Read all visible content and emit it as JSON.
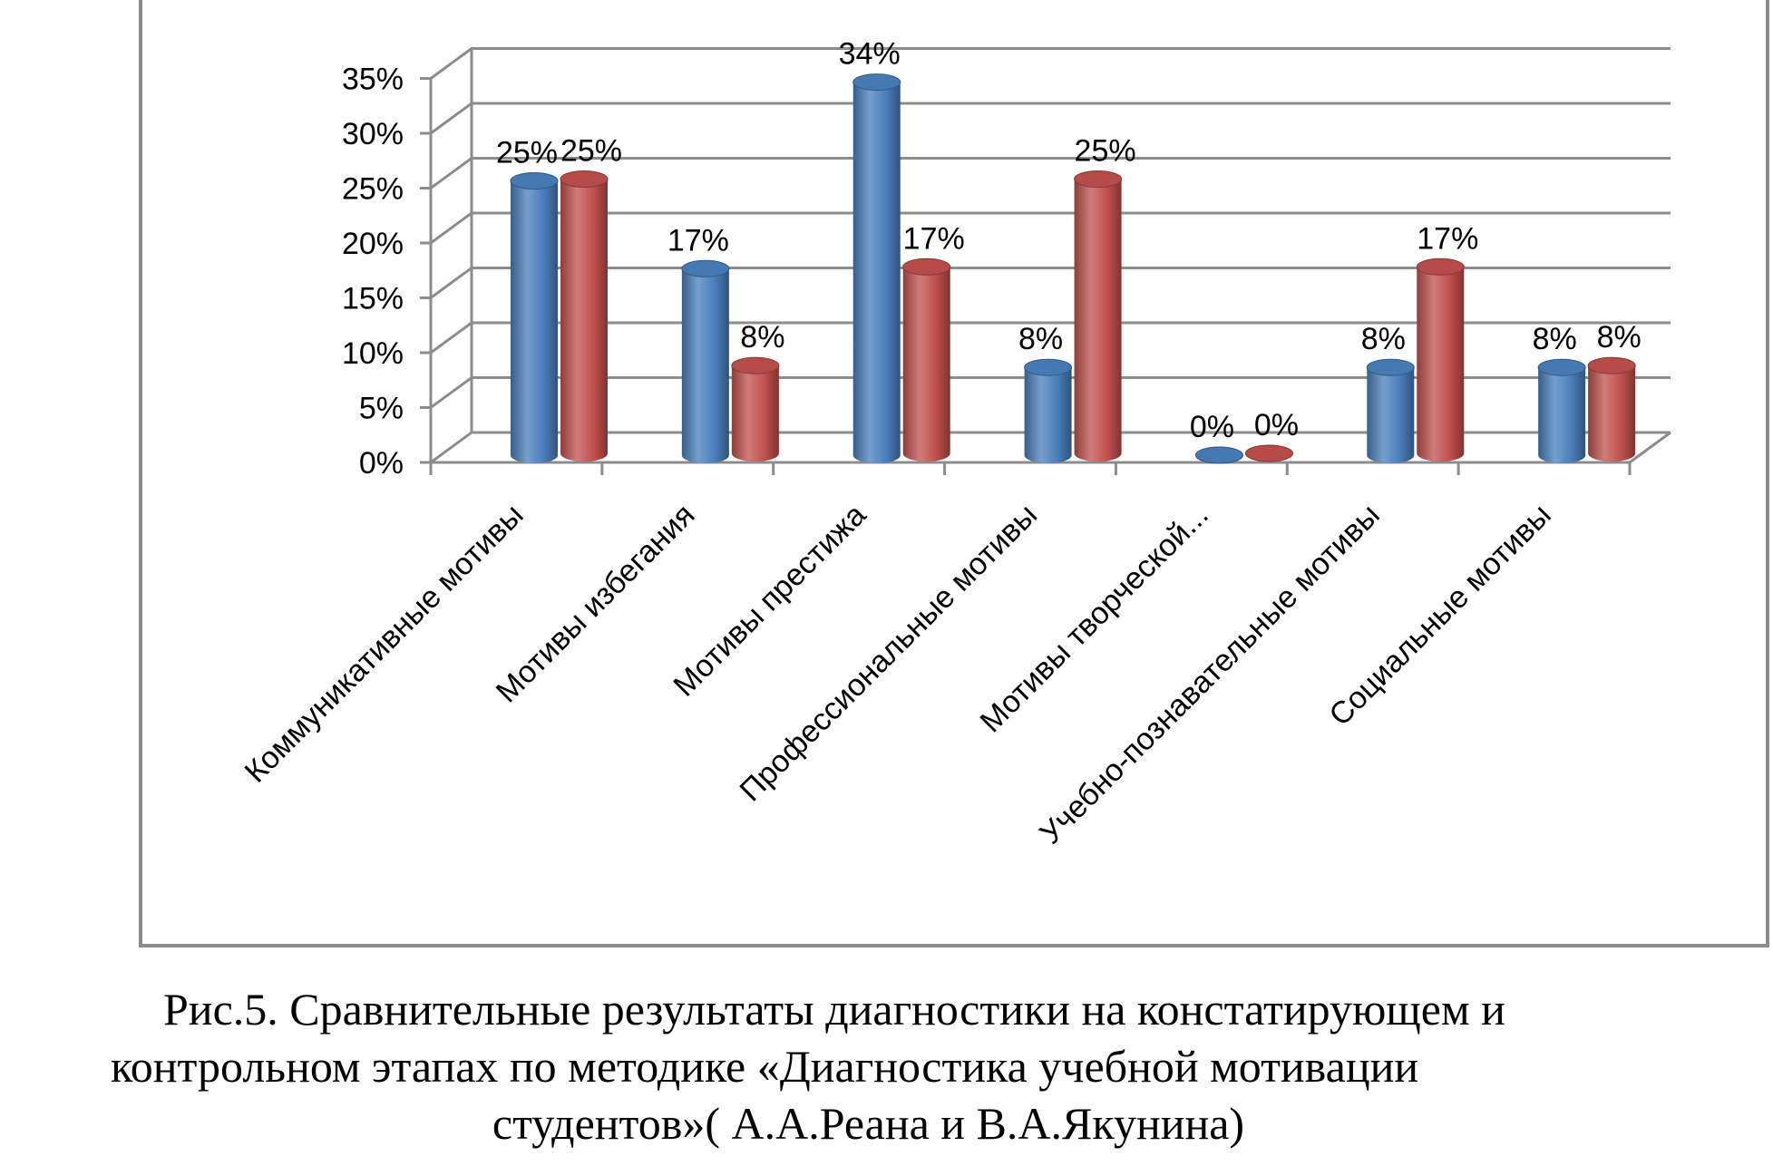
{
  "chart_data": {
    "type": "bar",
    "style": "3d-cylinder",
    "categories": [
      "Коммуникативные мотивы",
      "Мотивы избегания",
      "Мотивы престижа",
      "Профессиональные мотивы",
      "Мотивы творческой...",
      "Учебно-познавательные мотивы",
      "Социальные мотивы"
    ],
    "series": [
      {
        "values": [
          25,
          17,
          34,
          8,
          0,
          8,
          8
        ],
        "color": "#4a7ebb"
      },
      {
        "values": [
          25,
          8,
          17,
          25,
          0,
          17,
          8
        ],
        "color": "#c0504d"
      }
    ],
    "data_labels": [
      [
        "25%",
        "17%",
        "34%",
        "8%",
        "0%",
        "8%",
        "8%"
      ],
      [
        "25%",
        "8%",
        "17%",
        "25%",
        "0%",
        "17%",
        "8%"
      ]
    ],
    "y_ticks": [
      "0%",
      "5%",
      "10%",
      "15%",
      "20%",
      "25%",
      "30%",
      "35%"
    ],
    "ylim": [
      0,
      35
    ],
    "grid": true,
    "legend": "none"
  },
  "caption": {
    "line1": "Рис.5. Сравнительные результаты диагностики на констатирующем и",
    "line2": "контрольном этапах  по методике «Диагностика учебной мотивации",
    "line3": "студентов»( А.А.Реана и В.А.Якунина)"
  }
}
